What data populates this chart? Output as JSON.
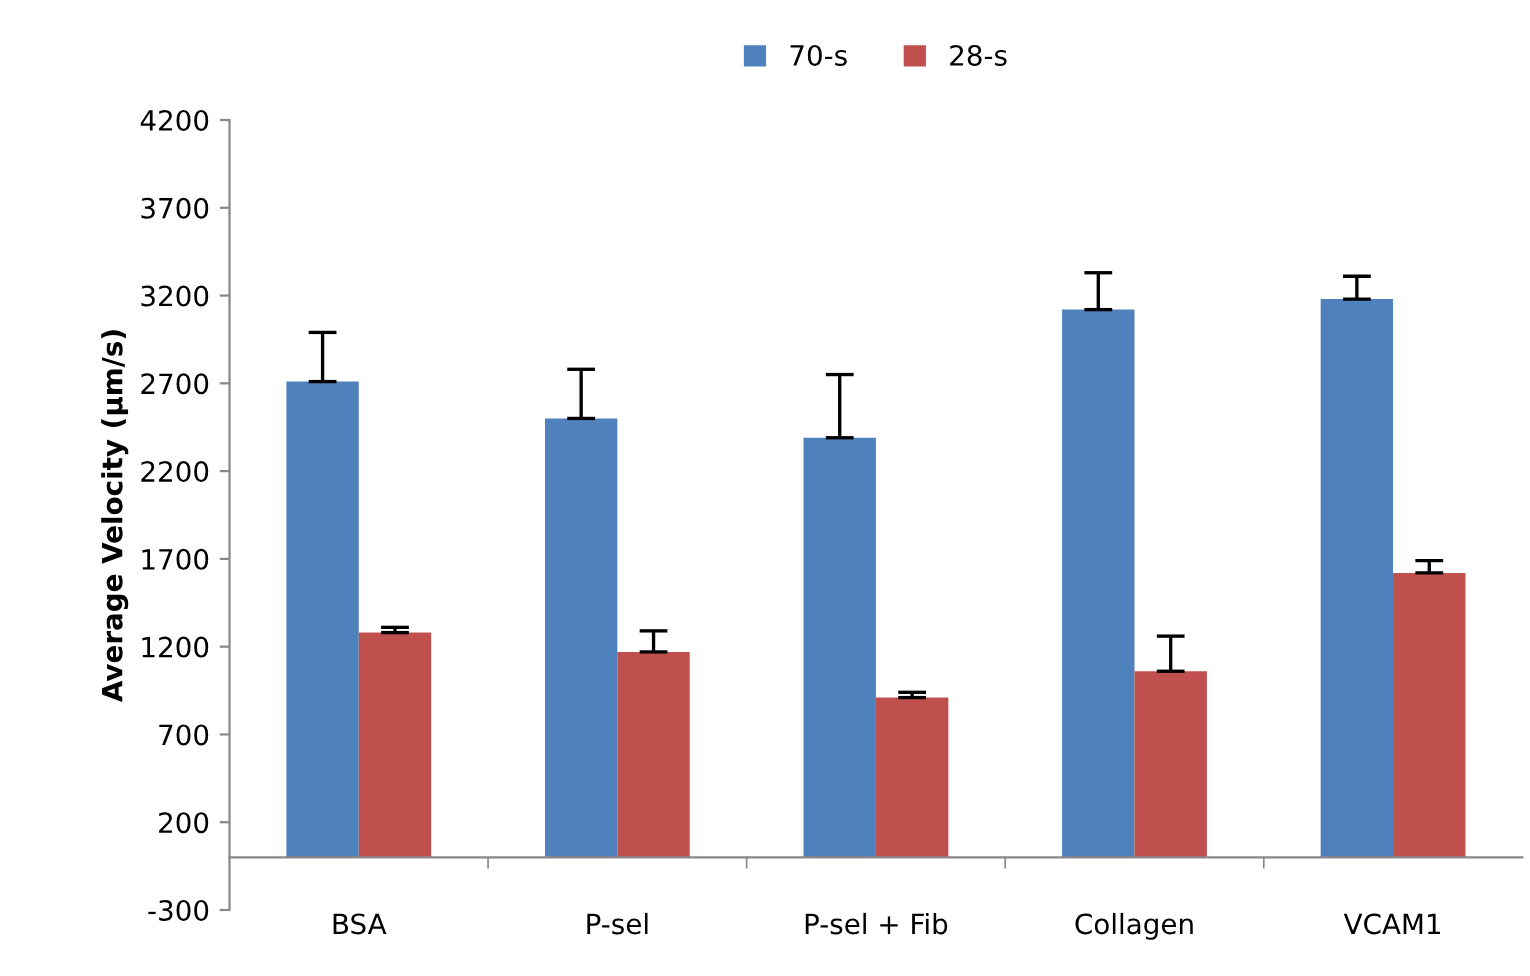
{
  "chart_data": {
    "type": "bar",
    "ylabel": "Average Velocity (µm/s)",
    "categories": [
      "BSA",
      "P-sel",
      "P-sel + Fib",
      "Collagen",
      "VCAM1"
    ],
    "series": [
      {
        "name": "70-s",
        "color": "#4f81bd",
        "values": [
          2710,
          2500,
          2390,
          3120,
          3180
        ],
        "errors": [
          [
            2710,
            2990
          ],
          [
            2500,
            2780
          ],
          [
            2390,
            2750
          ],
          [
            3120,
            3330
          ],
          [
            3180,
            3310
          ]
        ]
      },
      {
        "name": "28-s",
        "color": "#c0504d",
        "values": [
          1280,
          1170,
          910,
          1060,
          1620
        ],
        "errors": [
          [
            1280,
            1310
          ],
          [
            1170,
            1290
          ],
          [
            910,
            940
          ],
          [
            1060,
            1260
          ],
          [
            1620,
            1690
          ]
        ]
      }
    ],
    "ylim": [
      -300,
      4200
    ],
    "yticks": [
      -300,
      200,
      700,
      1200,
      1700,
      2200,
      2700,
      3200,
      3700,
      4200
    ],
    "legend": "top",
    "grid": false
  }
}
